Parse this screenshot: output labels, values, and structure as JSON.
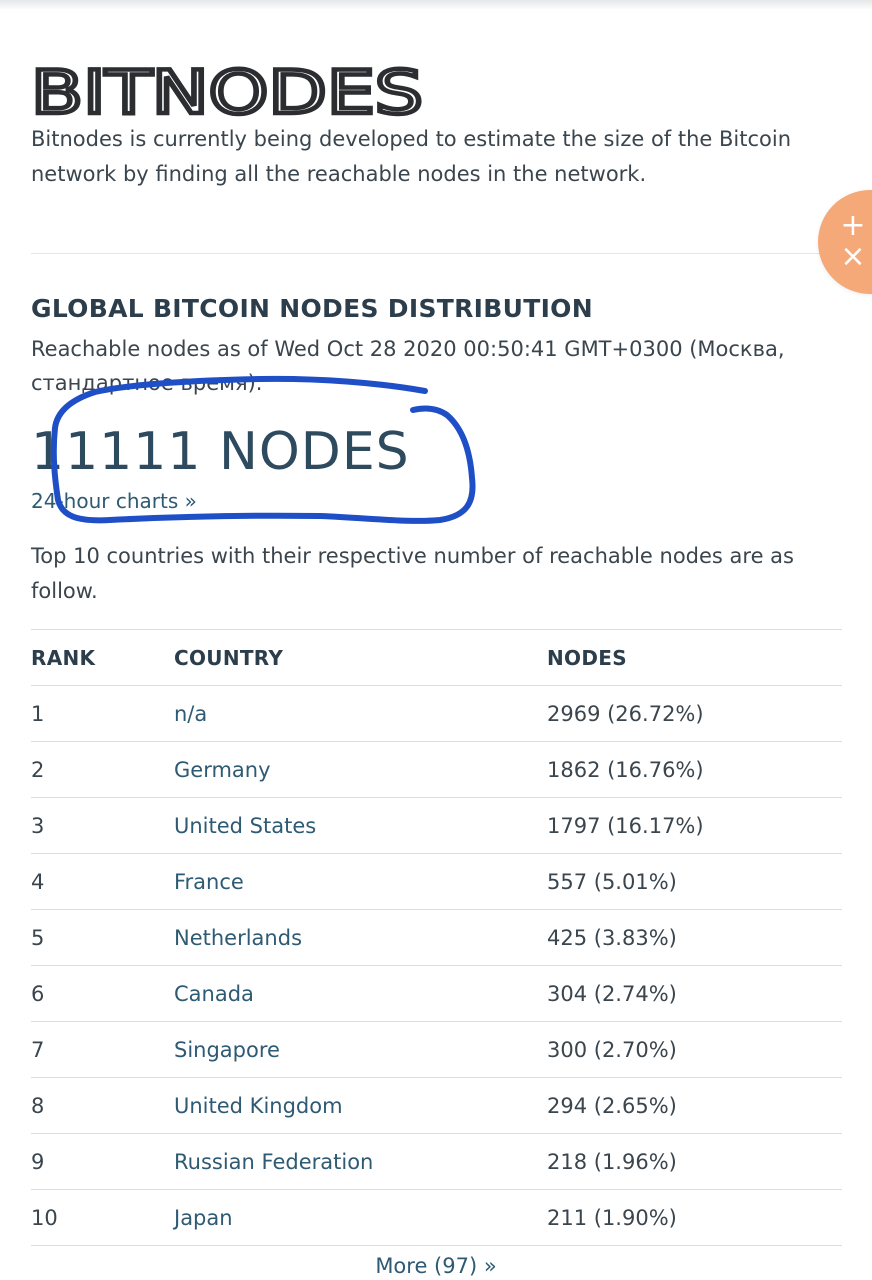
{
  "header": {
    "logo_text": "BITNODES",
    "intro": "Bitnodes is currently being developed to estimate the size of the Bitcoin network by finding all the reachable nodes in the network."
  },
  "fab": {
    "icon_plus": "plus-icon",
    "icon_close": "close-icon",
    "color": "#f5a978"
  },
  "distribution": {
    "title": "GLOBAL BITCOIN NODES DISTRIBUTION",
    "as_of": "Reachable nodes as of Wed Oct 28 2020 00:50:41 GMT+0300 (Москва, стандартное время).",
    "node_count": "11111 NODES",
    "charts_link": "24-hour charts »",
    "annotation_color": "#1f4fc7"
  },
  "table": {
    "intro": "Top 10 countries with their respective number of reachable nodes are as follow.",
    "headers": {
      "rank": "RANK",
      "country": "COUNTRY",
      "nodes": "NODES"
    },
    "rows": [
      {
        "rank": "1",
        "country": "n/a",
        "nodes": "2969 (26.72%)"
      },
      {
        "rank": "2",
        "country": "Germany",
        "nodes": "1862 (16.76%)"
      },
      {
        "rank": "3",
        "country": "United States",
        "nodes": "1797 (16.17%)"
      },
      {
        "rank": "4",
        "country": "France",
        "nodes": "557 (5.01%)"
      },
      {
        "rank": "5",
        "country": "Netherlands",
        "nodes": "425 (3.83%)"
      },
      {
        "rank": "6",
        "country": "Canada",
        "nodes": "304 (2.74%)"
      },
      {
        "rank": "7",
        "country": "Singapore",
        "nodes": "300 (2.70%)"
      },
      {
        "rank": "8",
        "country": "United Kingdom",
        "nodes": "294 (2.65%)"
      },
      {
        "rank": "9",
        "country": "Russian Federation",
        "nodes": "218 (1.96%)"
      },
      {
        "rank": "10",
        "country": "Japan",
        "nodes": "211 (1.90%)"
      }
    ],
    "more_link": "More (97) »"
  }
}
